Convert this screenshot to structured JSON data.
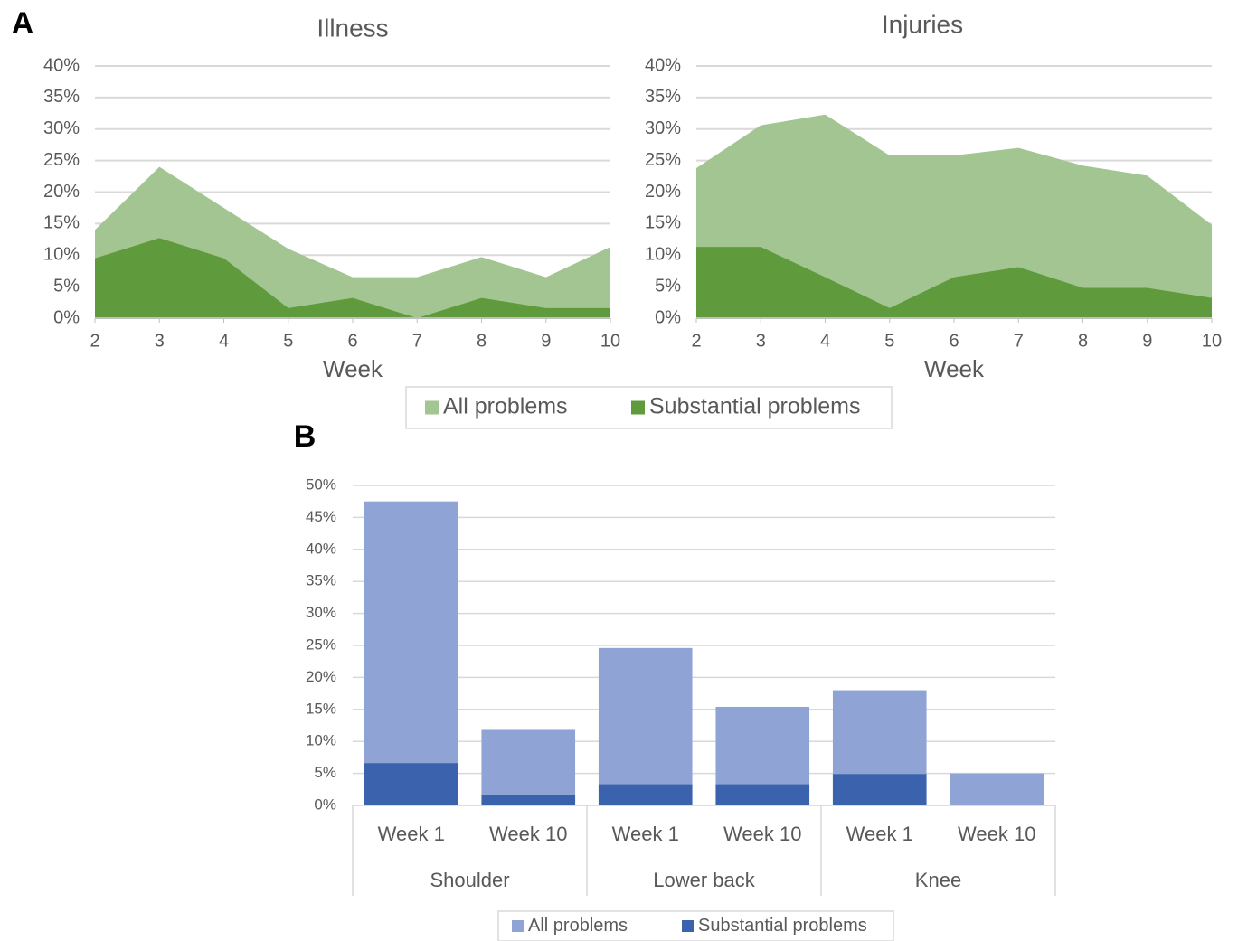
{
  "chart_data": [
    {
      "panel": "A",
      "type": "area",
      "title": "Illness",
      "x_label": "Week",
      "x": [
        2,
        3,
        4,
        5,
        6,
        7,
        8,
        9,
        10
      ],
      "xlim": [
        2,
        10
      ],
      "xticks": [
        2,
        3,
        4,
        5,
        6,
        7,
        8,
        9,
        10
      ],
      "ylim": [
        0,
        40
      ],
      "yticks": [
        {
          "value": 0,
          "label": "0%"
        },
        {
          "value": 5,
          "label": "5%"
        },
        {
          "value": 10,
          "label": "10%"
        },
        {
          "value": 15,
          "label": "15%"
        },
        {
          "value": 20,
          "label": "20%"
        },
        {
          "value": 25,
          "label": "25%"
        },
        {
          "value": 30,
          "label": "30%"
        },
        {
          "value": 35,
          "label": "35%"
        },
        {
          "value": 40,
          "label": "40%"
        }
      ],
      "grid": true,
      "series": [
        {
          "name": "All problems",
          "color": "#a2c592",
          "values": [
            14,
            24,
            17.5,
            11,
            6.5,
            6.5,
            9.7,
            6.5,
            11.3
          ]
        },
        {
          "name": "Substantial problems",
          "color": "#5f9a3c",
          "values": [
            9.5,
            12.7,
            9.5,
            1.6,
            3.2,
            0,
            3.2,
            1.6,
            1.6
          ]
        }
      ]
    },
    {
      "type": "area",
      "title": "Injuries",
      "x_label": "Week",
      "x": [
        2,
        3,
        4,
        5,
        6,
        7,
        8,
        9,
        10
      ],
      "xlim": [
        2,
        10
      ],
      "xticks": [
        2,
        3,
        4,
        5,
        6,
        7,
        8,
        9,
        10
      ],
      "ylim": [
        0,
        40
      ],
      "yticks": [
        {
          "value": 0,
          "label": "0%"
        },
        {
          "value": 5,
          "label": "5%"
        },
        {
          "value": 10,
          "label": "10%"
        },
        {
          "value": 15,
          "label": "15%"
        },
        {
          "value": 20,
          "label": "20%"
        },
        {
          "value": 25,
          "label": "25%"
        },
        {
          "value": 30,
          "label": "30%"
        },
        {
          "value": 35,
          "label": "35%"
        },
        {
          "value": 40,
          "label": "40%"
        }
      ],
      "grid": true,
      "series": [
        {
          "color": "#a2c592",
          "values": [
            23.8,
            30.6,
            32.3,
            25.8,
            25.8,
            27,
            24.2,
            22.6,
            14.8
          ]
        },
        {
          "color": "#5f9a3c",
          "values": [
            11.3,
            11.3,
            6.5,
            1.6,
            6.5,
            8.1,
            4.8,
            4.8,
            3.2
          ]
        }
      ]
    },
    {
      "panel": "B",
      "type": "bar",
      "categories": [
        "Week 1",
        "Week 10",
        "Week 1",
        "Week 10",
        "Week 1",
        "Week 10"
      ],
      "groups": [
        "Shoulder",
        "Lower back",
        "Knee"
      ],
      "ylim": [
        0,
        50
      ],
      "yticks": [
        {
          "value": 0,
          "label": "0%"
        },
        {
          "value": 5,
          "label": "5%"
        },
        {
          "value": 10,
          "label": "10%"
        },
        {
          "value": 15,
          "label": "15%"
        },
        {
          "value": 20,
          "label": "20%"
        },
        {
          "value": 25,
          "label": "25%"
        },
        {
          "value": 30,
          "label": "30%"
        },
        {
          "value": 35,
          "label": "35%"
        },
        {
          "value": 40,
          "label": "40%"
        },
        {
          "value": 45,
          "label": "45%"
        },
        {
          "value": 50,
          "label": "50%"
        }
      ],
      "grid": true,
      "series": [
        {
          "name": "All problems",
          "color": "#8fa3d4",
          "values": [
            47.5,
            11.8,
            24.6,
            15.4,
            18,
            5
          ]
        },
        {
          "name": "Substantial problems",
          "color": "#3a62ad",
          "values": [
            6.6,
            1.6,
            3.3,
            3.3,
            4.9,
            0
          ]
        }
      ]
    }
  ]
}
